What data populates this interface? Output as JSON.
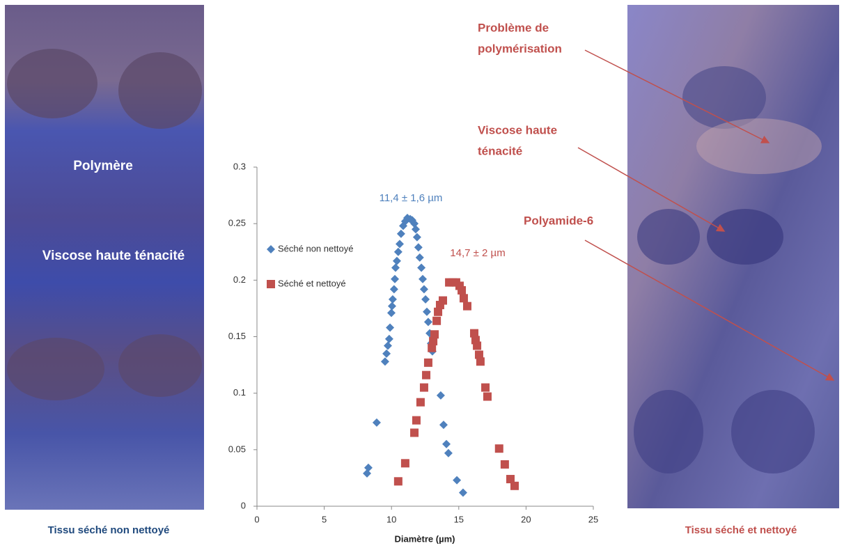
{
  "chart_data": {
    "type": "scatter",
    "xlabel": "Diamètre (µm)",
    "xlim": [
      0,
      25
    ],
    "xticks": [
      0,
      5,
      10,
      15,
      20,
      25
    ],
    "ylim": [
      0,
      0.3
    ],
    "yticks": [
      0,
      0.05,
      0.1,
      0.15,
      0.2,
      0.25,
      0.3
    ],
    "legend": "upper left",
    "annotations": [
      "11,4 ± 1,6 µm",
      "14,7 ± 2 µm"
    ],
    "series": [
      {
        "name": "Séché non nettoyé",
        "color": "#4f81bd",
        "marker": "diamond",
        "x": [
          8.18,
          8.28,
          8.9,
          9.52,
          9.63,
          9.73,
          9.83,
          9.89,
          9.99,
          10.04,
          10.09,
          10.19,
          10.25,
          10.3,
          10.4,
          10.5,
          10.61,
          10.71,
          10.87,
          11.02,
          11.18,
          11.39,
          11.54,
          11.7,
          11.8,
          11.9,
          12.0,
          12.1,
          12.22,
          12.32,
          12.42,
          12.53,
          12.63,
          12.73,
          12.84,
          12.94,
          13.04,
          13.66,
          13.87,
          14.08,
          14.23,
          14.86,
          15.32
        ],
        "values": [
          0.029,
          0.034,
          0.074,
          0.128,
          0.135,
          0.142,
          0.148,
          0.158,
          0.171,
          0.177,
          0.183,
          0.192,
          0.201,
          0.211,
          0.217,
          0.225,
          0.232,
          0.241,
          0.248,
          0.252,
          0.255,
          0.254,
          0.253,
          0.25,
          0.245,
          0.238,
          0.229,
          0.22,
          0.211,
          0.201,
          0.192,
          0.183,
          0.172,
          0.163,
          0.153,
          0.144,
          0.137,
          0.098,
          0.072,
          0.055,
          0.047,
          0.023,
          0.012
        ]
      },
      {
        "name": "Séché et nettoyé",
        "color": "#c0504d",
        "marker": "square",
        "x": [
          10.5,
          11.02,
          11.7,
          11.85,
          12.16,
          12.42,
          12.58,
          12.73,
          13.0,
          13.1,
          13.2,
          13.36,
          13.46,
          13.61,
          13.82,
          14.29,
          14.55,
          14.8,
          15.06,
          15.22,
          15.37,
          15.63,
          16.15,
          16.25,
          16.36,
          16.51,
          16.61,
          16.98,
          17.13,
          18.0,
          18.42,
          18.84,
          19.15
        ],
        "values": [
          0.022,
          0.038,
          0.065,
          0.076,
          0.092,
          0.105,
          0.116,
          0.127,
          0.14,
          0.146,
          0.152,
          0.164,
          0.172,
          0.178,
          0.182,
          0.198,
          0.198,
          0.198,
          0.195,
          0.191,
          0.184,
          0.177,
          0.153,
          0.147,
          0.142,
          0.134,
          0.128,
          0.105,
          0.097,
          0.051,
          0.037,
          0.024,
          0.018
        ]
      }
    ]
  },
  "left_panel": {
    "labels": [
      "Polymère",
      "Viscose haute ténacité"
    ],
    "caption": "Tissu séché non nettoyé"
  },
  "right_panel": {
    "annotations": [
      [
        "Problème de",
        "polymérisation"
      ],
      [
        "Viscose haute",
        "ténacité"
      ],
      [
        "Polyamide-6"
      ]
    ],
    "caption": "Tissu séché et nettoyé"
  }
}
